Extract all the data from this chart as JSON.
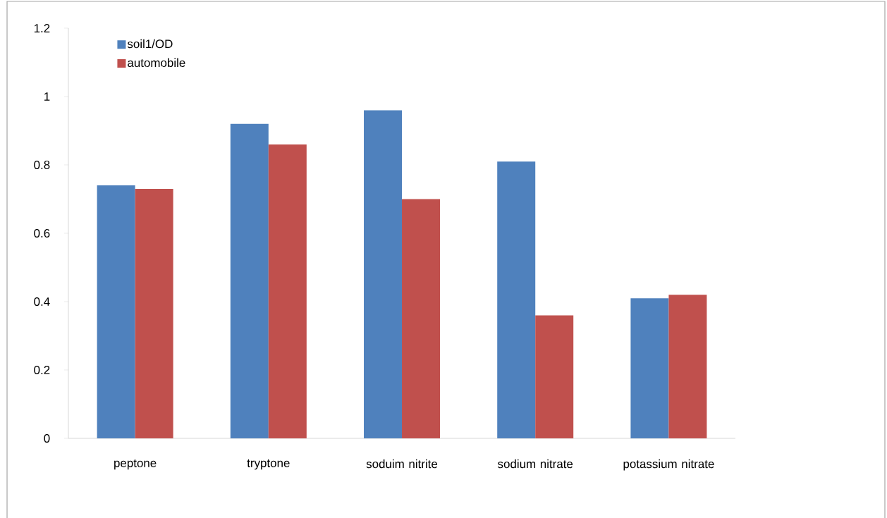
{
  "chart_data": {
    "type": "bar",
    "categories": [
      "peptone",
      "tryptone",
      "soduim nitrite",
      "sodium nitrate",
      "potassium nitrate"
    ],
    "series": [
      {
        "name": "soil1/OD",
        "color": "#4f81bd",
        "values": [
          0.74,
          0.92,
          0.96,
          0.81,
          0.41
        ]
      },
      {
        "name": "automobile",
        "color": "#c0504d",
        "values": [
          0.73,
          0.86,
          0.7,
          0.36,
          0.42
        ]
      }
    ],
    "ylim": [
      0,
      1.2
    ],
    "yticks": [
      0,
      0.2,
      0.4,
      0.6,
      0.8,
      1,
      1.2
    ],
    "grid": false,
    "legend": "top left"
  }
}
